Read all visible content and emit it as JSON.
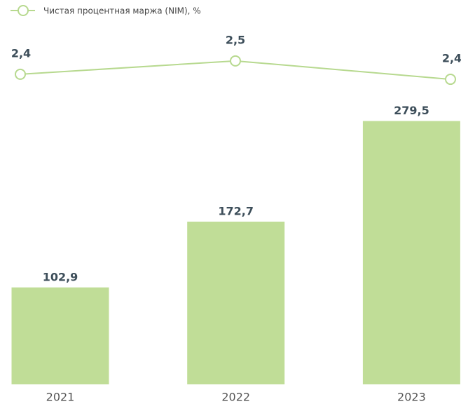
{
  "chart_data": {
    "type": "bar",
    "categories": [
      "2021",
      "2022",
      "2023"
    ],
    "series": [
      {
        "name": "Чистая процентная маржа (NIM), %",
        "type": "line",
        "axis": "y2",
        "color": "#b7d98f",
        "values": [
          2.42,
          2.5,
          2.39
        ],
        "value_labels": [
          "2,4",
          "2,5",
          "2,4"
        ]
      },
      {
        "type": "bar",
        "color": "#c0dd97",
        "values": [
          102.9,
          172.7,
          279.5
        ],
        "value_labels": [
          "102,9",
          "172,7",
          "279,5"
        ]
      }
    ],
    "ylim": [
      0,
      300
    ],
    "y2lim": [
      2.3,
      2.6
    ]
  }
}
